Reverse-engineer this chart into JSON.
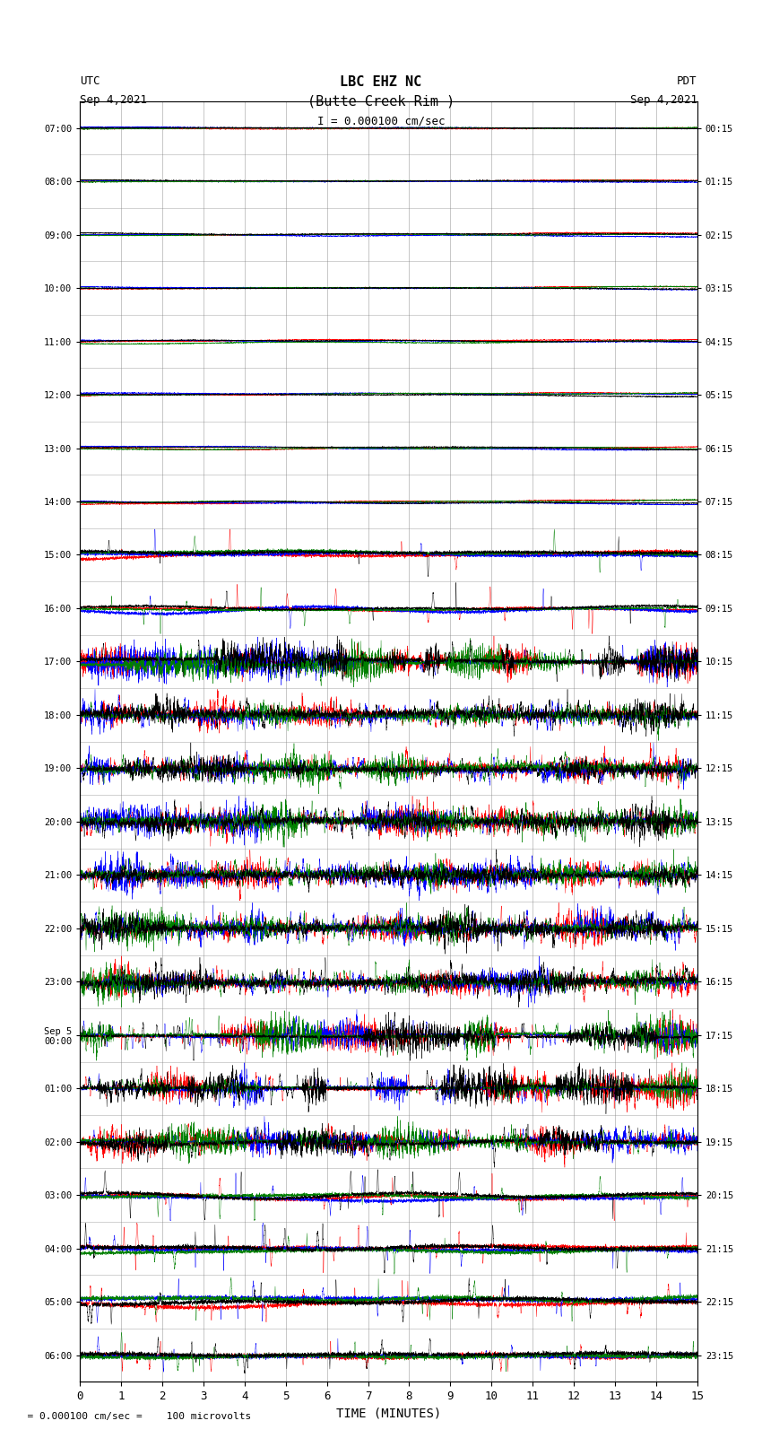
{
  "title_line1": "LBC EHZ NC",
  "title_line2": "(Butte Creek Rim )",
  "scale_text": "I = 0.000100 cm/sec",
  "utc_label": "UTC",
  "utc_date": "Sep 4,2021",
  "pdt_label": "PDT",
  "pdt_date": "Sep 4,2021",
  "xlabel": "TIME (MINUTES)",
  "footer": "  = 0.000100 cm/sec =    100 microvolts",
  "footer_symbol": "  = 0.000100 cm/sec =    100 microvolts",
  "xlim": [
    0,
    15
  ],
  "xticks": [
    0,
    1,
    2,
    3,
    4,
    5,
    6,
    7,
    8,
    9,
    10,
    11,
    12,
    13,
    14,
    15
  ],
  "fig_width": 8.5,
  "fig_height": 16.13,
  "dpi": 100,
  "num_traces": 24,
  "trace_colors": [
    "red",
    "blue",
    "green",
    "black"
  ],
  "bg_color": "white",
  "left_times": [
    "07:00",
    "08:00",
    "09:00",
    "10:00",
    "11:00",
    "12:00",
    "13:00",
    "14:00",
    "15:00",
    "16:00",
    "17:00",
    "18:00",
    "19:00",
    "20:00",
    "21:00",
    "22:00",
    "23:00",
    "Sep 5\n00:00",
    "01:00",
    "02:00",
    "03:00",
    "04:00",
    "05:00",
    "06:00"
  ],
  "right_times": [
    "00:15",
    "01:15",
    "02:15",
    "03:15",
    "04:15",
    "05:15",
    "06:15",
    "07:15",
    "08:15",
    "09:15",
    "10:15",
    "11:15",
    "12:15",
    "13:15",
    "14:15",
    "15:15",
    "16:15",
    "17:15",
    "18:15",
    "19:15",
    "20:15",
    "21:15",
    "22:15",
    "23:15"
  ]
}
